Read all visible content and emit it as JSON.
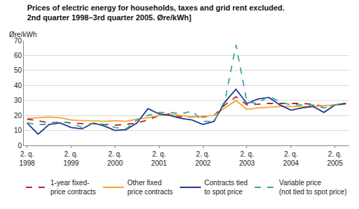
{
  "chart_data": {
    "type": "line",
    "title": "Prices of electric energy for households, taxes and grid rent excluded.\n2nd quarter 1998–3rd quarter 2005. Øre/kWh]",
    "ylabel": "Øre/kWh",
    "categories": [
      "2. q.\n1998",
      null,
      null,
      null,
      "2. q.\n1999",
      null,
      null,
      null,
      "2. q.\n2000",
      null,
      null,
      null,
      "2. q.\n2001",
      null,
      null,
      null,
      "2. q.\n2002",
      null,
      null,
      null,
      "2. q.\n2003",
      null,
      null,
      null,
      "2. q.\n2004",
      null,
      null,
      null,
      "2. q.\n2005",
      null
    ],
    "series": [
      {
        "name": "1-year fixed-\nprice contracts",
        "color": "#b3262a",
        "line_style": "dash",
        "values": [
          17.5,
          16.5,
          15,
          15.5,
          15,
          14.5,
          14.5,
          14,
          13.5,
          14,
          15,
          17,
          20,
          21,
          19,
          19,
          19,
          20,
          27,
          32.5,
          27,
          27.5,
          28,
          28,
          28,
          28,
          27.5,
          26,
          27,
          28
        ]
      },
      {
        "name": "Other fixed\nprice contracts",
        "color": "#f5a530",
        "line_style": "solid",
        "values": [
          18,
          18.5,
          19,
          18.5,
          17,
          16.5,
          16.5,
          16,
          16.5,
          16,
          17.5,
          18.5,
          20,
          20.5,
          20,
          19,
          19.5,
          20,
          25,
          30,
          24,
          25,
          25.5,
          26,
          26,
          26,
          26,
          26.5,
          27,
          27.5
        ]
      },
      {
        "name": "Contracts tied\nto spot price",
        "color": "#1f3c8f",
        "line_style": "solid",
        "values": [
          15,
          7.5,
          14,
          15,
          12,
          11,
          15,
          13,
          10,
          10.5,
          15,
          24.5,
          21,
          20,
          18,
          17,
          14,
          16,
          29,
          37.5,
          28,
          31,
          32,
          27,
          23.5,
          25,
          26,
          22,
          27,
          28
        ]
      },
      {
        "name": "Variable price\n(not tied to spot price)",
        "color": "#3aa6a0",
        "line_style": "dash",
        "values": [
          15,
          14,
          14,
          16,
          15,
          12,
          15,
          14,
          12,
          11,
          17,
          20,
          22,
          22,
          21,
          23,
          16,
          16,
          30,
          67,
          29,
          28,
          33,
          29,
          27,
          27,
          27,
          25,
          27,
          28
        ]
      }
    ],
    "ylim": [
      0,
      70
    ],
    "yticks": [
      0,
      10,
      20,
      30,
      40,
      50,
      60,
      70
    ],
    "grid": true,
    "legend": "bottom"
  }
}
